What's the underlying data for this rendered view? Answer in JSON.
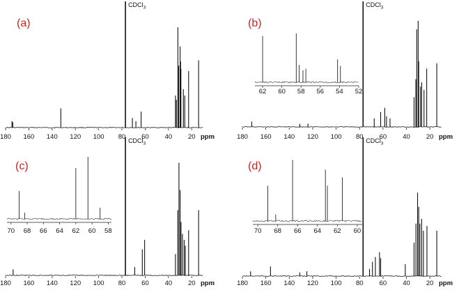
{
  "chart_data": [
    {
      "type": "line",
      "panel_label": "(a)",
      "solvent_label": "CDCl",
      "solvent_subscript": "3",
      "solvent_shift": 77,
      "x_ticks": [
        "180",
        "160",
        "140",
        "120",
        "100",
        "80",
        "60",
        "40",
        "20"
      ],
      "x_unit": "ppm",
      "xlim": [
        180,
        10
      ],
      "peaks": [
        {
          "x": 174.5,
          "h": 0.06
        },
        {
          "x": 173.8,
          "h": 0.05
        },
        {
          "x": 132.5,
          "h": 0.18
        },
        {
          "x": 71.0,
          "h": 0.09
        },
        {
          "x": 68.0,
          "h": 0.06
        },
        {
          "x": 63.5,
          "h": 0.15
        },
        {
          "x": 34.0,
          "h": 0.3
        },
        {
          "x": 33.2,
          "h": 0.26
        },
        {
          "x": 31.9,
          "h": 0.94
        },
        {
          "x": 31.2,
          "h": 0.58
        },
        {
          "x": 30.0,
          "h": 0.76
        },
        {
          "x": 29.6,
          "h": 0.62
        },
        {
          "x": 29.3,
          "h": 0.55
        },
        {
          "x": 27.2,
          "h": 0.36
        },
        {
          "x": 26.0,
          "h": 0.3
        },
        {
          "x": 22.7,
          "h": 0.53
        },
        {
          "x": 14.1,
          "h": 0.63
        }
      ]
    },
    {
      "type": "line",
      "panel_label": "(b)",
      "solvent_label": "CDCl",
      "solvent_subscript": "3",
      "solvent_shift": 77,
      "x_ticks": [
        "180",
        "160",
        "140",
        "120",
        "100",
        "80",
        "60",
        "40",
        "20"
      ],
      "x_unit": "ppm",
      "xlim": [
        180,
        10
      ],
      "peaks": [
        {
          "x": 172.0,
          "h": 0.05
        },
        {
          "x": 131.0,
          "h": 0.03
        },
        {
          "x": 124.0,
          "h": 0.03
        },
        {
          "x": 67.5,
          "h": 0.08
        },
        {
          "x": 62.0,
          "h": 0.14
        },
        {
          "x": 58.5,
          "h": 0.18
        },
        {
          "x": 57.0,
          "h": 0.1
        },
        {
          "x": 54.0,
          "h": 0.08
        },
        {
          "x": 33.5,
          "h": 0.28
        },
        {
          "x": 32.0,
          "h": 0.45
        },
        {
          "x": 31.2,
          "h": 0.92
        },
        {
          "x": 30.0,
          "h": 1.0
        },
        {
          "x": 29.5,
          "h": 0.62
        },
        {
          "x": 28.0,
          "h": 0.38
        },
        {
          "x": 27.0,
          "h": 0.42
        },
        {
          "x": 25.0,
          "h": 0.35
        },
        {
          "x": 22.7,
          "h": 0.55
        },
        {
          "x": 14.1,
          "h": 0.6
        }
      ],
      "inset": {
        "x_ticks": [
          "62",
          "60",
          "58",
          "56",
          "54",
          "52"
        ],
        "xlim": [
          62.8,
          52
        ],
        "peaks": [
          {
            "x": 62.0,
            "h": 0.85
          },
          {
            "x": 58.5,
            "h": 0.9
          },
          {
            "x": 58.2,
            "h": 0.32
          },
          {
            "x": 57.8,
            "h": 0.22
          },
          {
            "x": 57.5,
            "h": 0.25
          },
          {
            "x": 54.2,
            "h": 0.42
          },
          {
            "x": 53.9,
            "h": 0.3
          }
        ]
      }
    },
    {
      "type": "line",
      "panel_label": "(c)",
      "solvent_label": "CDCl",
      "solvent_subscript": "3",
      "solvent_shift": 77,
      "x_ticks": [
        "180",
        "160",
        "140",
        "120",
        "100",
        "80",
        "60",
        "40",
        "20"
      ],
      "x_unit": "ppm",
      "xlim": [
        180,
        10
      ],
      "peaks": [
        {
          "x": 173.5,
          "h": 0.05
        },
        {
          "x": 69.0,
          "h": 0.07
        },
        {
          "x": 62.5,
          "h": 0.22
        },
        {
          "x": 60.5,
          "h": 0.3
        },
        {
          "x": 34.0,
          "h": 0.18
        },
        {
          "x": 32.0,
          "h": 0.55
        },
        {
          "x": 31.0,
          "h": 0.95
        },
        {
          "x": 30.0,
          "h": 0.72
        },
        {
          "x": 29.2,
          "h": 0.45
        },
        {
          "x": 28.0,
          "h": 0.35
        },
        {
          "x": 26.5,
          "h": 0.3
        },
        {
          "x": 25.5,
          "h": 0.25
        },
        {
          "x": 22.7,
          "h": 0.38
        },
        {
          "x": 14.1,
          "h": 0.55
        }
      ],
      "inset": {
        "x_ticks": [
          "70",
          "68",
          "66",
          "64",
          "62",
          "60",
          "58"
        ],
        "xlim": [
          70.5,
          57.6
        ],
        "peaks": [
          {
            "x": 69.0,
            "h": 0.45
          },
          {
            "x": 68.3,
            "h": 0.1
          },
          {
            "x": 62.0,
            "h": 0.82
          },
          {
            "x": 60.5,
            "h": 1.0
          },
          {
            "x": 59.0,
            "h": 0.18
          }
        ]
      }
    },
    {
      "type": "line",
      "panel_label": "(d)",
      "solvent_label": "CDCl",
      "solvent_subscript": "3",
      "solvent_shift": 77,
      "x_ticks": [
        "180",
        "160",
        "140",
        "120",
        "100",
        "80",
        "60",
        "40",
        "20"
      ],
      "x_unit": "ppm",
      "xlim": [
        180,
        10
      ],
      "peaks": [
        {
          "x": 173.0,
          "h": 0.04
        },
        {
          "x": 156.0,
          "h": 0.08
        },
        {
          "x": 131.0,
          "h": 0.03
        },
        {
          "x": 125.0,
          "h": 0.04
        },
        {
          "x": 71.5,
          "h": 0.06
        },
        {
          "x": 69.0,
          "h": 0.12
        },
        {
          "x": 66.5,
          "h": 0.16
        },
        {
          "x": 63.0,
          "h": 0.2
        },
        {
          "x": 62.0,
          "h": 0.15
        },
        {
          "x": 41.0,
          "h": 0.1
        },
        {
          "x": 33.5,
          "h": 0.28
        },
        {
          "x": 31.9,
          "h": 0.44
        },
        {
          "x": 30.5,
          "h": 0.7
        },
        {
          "x": 29.5,
          "h": 0.58
        },
        {
          "x": 28.5,
          "h": 0.44
        },
        {
          "x": 27.0,
          "h": 0.48
        },
        {
          "x": 25.5,
          "h": 0.38
        },
        {
          "x": 22.5,
          "h": 0.42
        },
        {
          "x": 14.1,
          "h": 0.38
        }
      ],
      "inset": {
        "x_ticks": [
          "70",
          "68",
          "66",
          "64",
          "62",
          "60"
        ],
        "xlim": [
          70.5,
          59.5
        ],
        "peaks": [
          {
            "x": 69.0,
            "h": 0.55
          },
          {
            "x": 68.2,
            "h": 0.1
          },
          {
            "x": 66.5,
            "h": 0.95
          },
          {
            "x": 63.2,
            "h": 0.8
          },
          {
            "x": 63.0,
            "h": 0.55
          },
          {
            "x": 61.5,
            "h": 0.68
          }
        ]
      }
    }
  ]
}
